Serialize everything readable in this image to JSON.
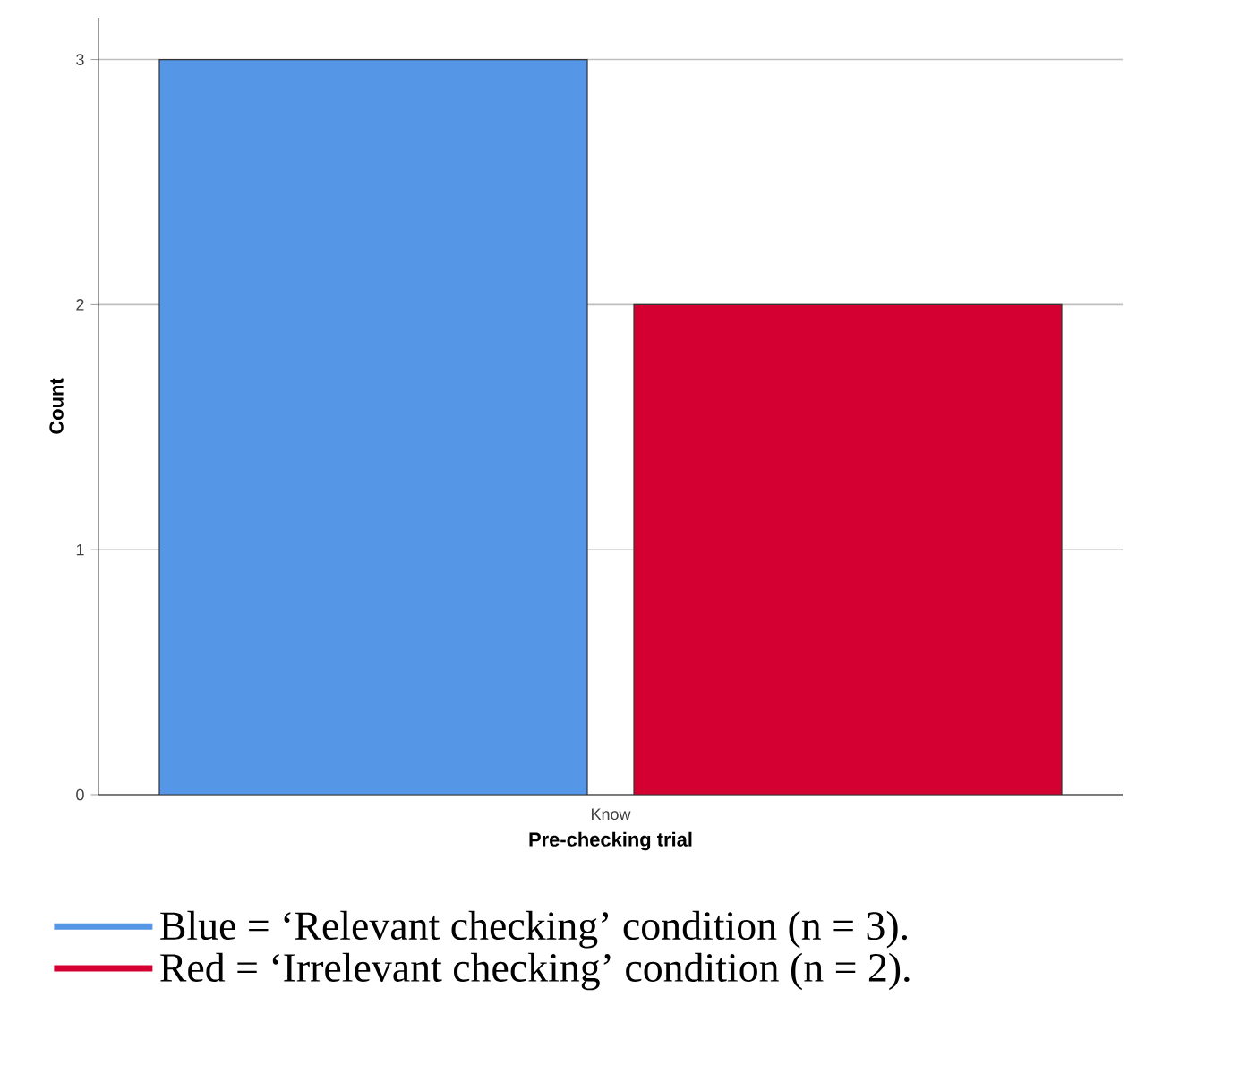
{
  "chart_data": {
    "type": "bar",
    "xlabel": "Pre-checking trial",
    "ylabel": "Count",
    "categories": [
      "Know"
    ],
    "series": [
      {
        "name": "Blue = ‘Relevant checking’ condition (n = 3).",
        "color": "#5596e6",
        "values": [
          3
        ]
      },
      {
        "name": "Red = ‘Irrelevant checking’ condition (n = 2).",
        "color": "#d50032",
        "values": [
          2
        ]
      }
    ],
    "ylim": [
      0,
      3.17
    ],
    "yticks": [
      0,
      1,
      2,
      3
    ],
    "grid": "y",
    "legend": "bottom"
  }
}
